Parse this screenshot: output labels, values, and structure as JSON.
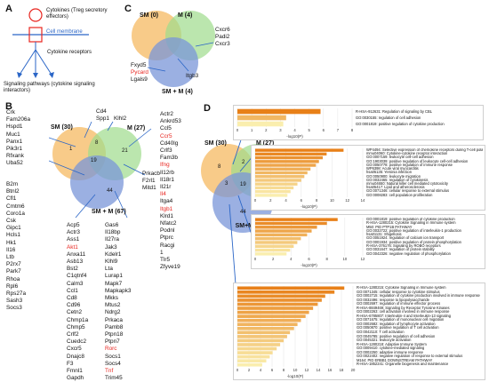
{
  "panels": {
    "a": "A",
    "b": "B",
    "c": "C",
    "d": "D"
  },
  "legend_a": {
    "cytokines": "Cytokines (Treg secretory effectors)",
    "membrane": "Cell membrane",
    "receptors": "Cytokine receptors",
    "signaling": "Signaling pathways (cytokine signaling interactors)"
  },
  "venn_c": {
    "sm": "SM (0)",
    "m": "M (4)",
    "smm": "SM + M (4)",
    "genes_m": [
      "Cxcr6",
      "Padi2",
      "Cxcr3"
    ],
    "genes_bottom": [
      "Itgb3"
    ],
    "genes_smm": [
      {
        "t": "Fxyd5",
        "red": false
      },
      {
        "t": "Pycard",
        "red": true
      },
      {
        "t": "Lgals9",
        "red": false
      }
    ]
  },
  "venn_b": {
    "sm": "SM (30)",
    "m": "M (27)",
    "smm": "SM + M (67)",
    "numbers": {
      "sm_only": "1",
      "sm_m": "8",
      "m_only": "21",
      "center": "19",
      "smm_only": "44"
    },
    "top_genes": [
      "Cd4",
      "Spp1"
    ],
    "klhl": [
      "Klhl2"
    ],
    "sm_genes": [
      "Crk",
      "Fam206a",
      "Hspd1",
      "Muc1",
      "Panx1",
      "Pik3r1",
      "Rfxank",
      "Uba52"
    ],
    "prkacb": [
      "Prkacb",
      "F2rl1",
      "Mitd1"
    ],
    "col_left": [
      {
        "t": "B2m",
        "red": false
      },
      {
        "t": "Btnl2",
        "red": false
      },
      {
        "t": "Cfl1",
        "red": false
      },
      {
        "t": "Cmtm6",
        "red": false
      },
      {
        "t": "Coro1a",
        "red": false
      },
      {
        "t": "Csk",
        "red": false
      },
      {
        "t": "Gipc1",
        "red": false
      },
      {
        "t": "Hcls1",
        "red": false
      },
      {
        "t": "Hk1",
        "red": false
      },
      {
        "t": "Il16",
        "red": false
      },
      {
        "t": "Ltb",
        "red": false
      },
      {
        "t": "P2rx7",
        "red": false
      },
      {
        "t": "Park7",
        "red": false
      },
      {
        "t": "Rhoa",
        "red": false
      },
      {
        "t": "Rpl6",
        "red": false
      },
      {
        "t": "Rps27a",
        "red": false
      },
      {
        "t": "Sash3",
        "red": false
      },
      {
        "t": "Socs3",
        "red": false
      }
    ],
    "col_mid": [
      {
        "t": "Acp5",
        "red": false
      },
      {
        "t": "Actr3",
        "red": false
      },
      {
        "t": "Ass1",
        "red": false
      },
      {
        "t": "Akt1",
        "red": true
      },
      {
        "t": "Anxa11",
        "red": false
      },
      {
        "t": "Asb13",
        "red": false
      },
      {
        "t": "Bst2",
        "red": false
      },
      {
        "t": "C1qtnf4",
        "red": false
      },
      {
        "t": "Calm3",
        "red": false
      },
      {
        "t": "Ccl1",
        "red": false
      },
      {
        "t": "Cd8",
        "red": false
      },
      {
        "t": "Cd96",
        "red": false
      },
      {
        "t": "Cetn2",
        "red": false
      },
      {
        "t": "Chmp1a",
        "red": false
      },
      {
        "t": "Chmp5",
        "red": false
      },
      {
        "t": "Crlf2",
        "red": false
      },
      {
        "t": "Cuedc2",
        "red": false
      },
      {
        "t": "Cxcr5",
        "red": false
      },
      {
        "t": "Dnajc8",
        "red": false
      },
      {
        "t": "F3",
        "red": false
      },
      {
        "t": "Fmnl1",
        "red": false
      },
      {
        "t": "Gapdh",
        "red": false
      }
    ],
    "col_mid2": [
      {
        "t": "Gas6",
        "red": false
      },
      {
        "t": "Il18bp",
        "red": false
      },
      {
        "t": "Il27ra",
        "red": false
      },
      {
        "t": "Jak3",
        "red": false
      },
      {
        "t": "Kdelr1",
        "red": false
      },
      {
        "t": "Klhl9",
        "red": false
      },
      {
        "t": "Lta",
        "red": false
      },
      {
        "t": "Lurap1",
        "red": false
      },
      {
        "t": "Mapk7",
        "red": false
      },
      {
        "t": "Mapkapk3",
        "red": false
      },
      {
        "t": "Mkks",
        "red": false
      },
      {
        "t": "Mtus2",
        "red": false
      },
      {
        "t": "Ndrg2",
        "red": false
      },
      {
        "t": "Prkaca",
        "red": false
      },
      {
        "t": "Pamb8",
        "red": false
      },
      {
        "t": "Ptpn18",
        "red": false
      },
      {
        "t": "Ptpn7",
        "red": false
      },
      {
        "t": "Rorc",
        "red": true
      },
      {
        "t": "Socs1",
        "red": false
      },
      {
        "t": "Socs4",
        "red": false
      },
      {
        "t": "Tnf",
        "red": true
      },
      {
        "t": "Trim45",
        "red": false
      }
    ],
    "col_right": [
      {
        "t": "Actr2",
        "red": false
      },
      {
        "t": "Ankrd53",
        "red": false
      },
      {
        "t": "Ccl5",
        "red": false
      },
      {
        "t": "Ccr5",
        "red": true
      },
      {
        "t": "Cd40lg",
        "red": false
      },
      {
        "t": "Crlf3",
        "red": false
      },
      {
        "t": "Fam3b",
        "red": false
      },
      {
        "t": "Ifng",
        "red": true
      },
      {
        "t": "Il12rb",
        "red": false
      },
      {
        "t": "Il18r1",
        "red": false
      },
      {
        "t": "Il21r",
        "red": false
      },
      {
        "t": "Il4",
        "red": true
      },
      {
        "t": "Itga4",
        "red": false
      },
      {
        "t": "Itgb1",
        "red": true
      },
      {
        "t": "Klrd1",
        "red": false
      },
      {
        "t": "Nfatc2",
        "red": false
      },
      {
        "t": "Podnl",
        "red": false
      },
      {
        "t": "Ptprc",
        "red": false
      },
      {
        "t": "Racgi",
        "red": false
      },
      {
        "t": "1",
        "red": false
      },
      {
        "t": "Tlr5",
        "red": false
      },
      {
        "t": "Zfyve19",
        "red": false
      }
    ]
  },
  "panel_d": {
    "venn": {
      "sm": "SM (30)",
      "m": "M (27)",
      "smm": "SM+M (67)",
      "numbers": {
        "sm_only": "8",
        "sm_m": "2",
        "m_only": "21",
        "sm_mid": "3",
        "center": "19",
        "right": "1",
        "smm_only": "44"
      }
    },
    "axis_label": "-log10(P)",
    "bar_charts": [
      {
        "terms": [
          "R-HSA-912631: Regulation of signaling by CBL",
          "GO:0030155: regulation of cell adhesion",
          "GO:0001819: positive regulation of cytokine production"
        ],
        "values": [
          5.8,
          3.4,
          3.2
        ],
        "ticks": [
          "0",
          "1",
          "2",
          "3",
          "4",
          "5",
          "6",
          "7",
          "8"
        ],
        "xmax": 8
      },
      {
        "terms": [
          "WP4494: Selective expression of chemokine receptors during T-cell polarization",
          "mmu04060: Cytokine-cytokine receptor interaction",
          "GO:0007159: leukocyte cell-cell adhesion",
          "GO:1903039: positive regulation of leukocyte cell-cell adhesion",
          "GO:0050778: positive regulation of immune response",
          "WP6398: Acute viral myocarditis",
          "hsa05135: Yersinia infection",
          "GO:0050900: leukocyte migration",
          "GO:0032465: regulation of cytokinesis",
          "mmu04650: Natural killer cell mediated cytotoxicity",
          "hsa05417: Lipid and atherosclerosis",
          "GO:0071346: cellular response to external stimulus",
          "GO:0008283: cell population proliferation"
        ],
        "values": [
          11.5,
          9.3,
          8.8,
          8.3,
          7.9,
          7.2,
          6.8,
          6.4,
          6.0,
          5.5,
          5.0,
          4.6,
          4.2
        ],
        "ticks": [
          "0",
          "2",
          "4",
          "6",
          "8",
          "10",
          "12",
          "14"
        ],
        "xmax": 14
      },
      {
        "terms": [
          "GO:0001819: positive regulation of cytokine production",
          "R-HSA-1280215: Cytokine Signaling in Immune system",
          "M50: PID PTP1B PATHWAY",
          "GO:0032722: positive regulation of interleukin-1 production",
          "hsa01131: Shigellosis",
          "GO:0051924: regulation of calcium ion transport",
          "GO:0001934: positive regulation of protein phosphorylation",
          "R-HSA-376176: Signaling by ROBO receptors",
          "GO:0031647: regulation of protein stability",
          "GO:0042326: negative regulation of phosphorylation"
        ],
        "values": [
          9.2,
          8.0,
          6.9,
          6.3,
          5.8,
          5.1,
          4.7,
          4.3,
          3.9,
          3.5
        ],
        "ticks": [
          "0",
          "2",
          "4",
          "6",
          "8",
          "10",
          "12"
        ],
        "xmax": 12
      },
      {
        "terms": [
          "R-HSA-1280215: Cytokine Signaling in Immune system",
          "GO:0071345: cellular response to cytokine stimulus",
          "GO:0002715: regulation of cytokine production involved in immune response",
          "GO:0032496: response to lipopolysaccharide",
          "GO:0002697: regulation of immune effector process",
          "R-HSA-8849469: Signaling by Receptor Tyrosine Kinases",
          "GO:0002263: cell activation involved in immune response",
          "R-HSA-6785807: Interleukin-4 and Interleukin-13 signaling",
          "GO:0071675: regulation of mononuclear cell migration",
          "GO:0002682: regulation of lymphocyte activation",
          "GO:0050870: positive regulation of T cell activation",
          "GO:0042110: T cell activation",
          "GO:0045785: positive regulation of cell adhesion",
          "GO:0045321: leukocyte activation",
          "R-HSA-1280218: Adaptive Immune System",
          "GO:0009410: cytokine-mediated signaling",
          "GO:0002250: adaptive immune response",
          "GO:0022402: negative regulation of response to external stimulus",
          "M164: PID ERBB1 DOWNSTREAM PATHWAY",
          "R-HSA-1852241: Organelle biogenesis and maintenance"
        ],
        "values": [
          18.5,
          16.8,
          15.2,
          14.6,
          13.9,
          13.1,
          12.4,
          11.8,
          11.0,
          10.4,
          9.8,
          9.1,
          8.6,
          8.0,
          7.4,
          6.8,
          6.1,
          5.6,
          5.0,
          4.3
        ],
        "ticks": [
          "0",
          "2",
          "4",
          "6",
          "8",
          "10",
          "12",
          "14",
          "16",
          "18",
          "20"
        ],
        "xmax": 20
      }
    ]
  }
}
